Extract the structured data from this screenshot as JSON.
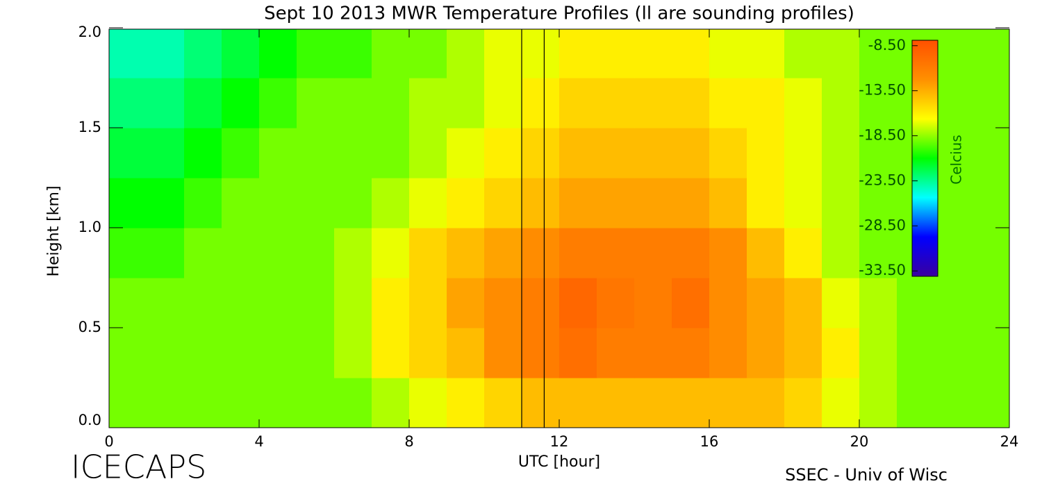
{
  "chart_data": {
    "type": "heatmap",
    "title": "Sept 10 2013 MWR Temperature Profiles (ll are sounding profiles)",
    "x_label": "UTC [hour]",
    "y_label": "Height [km]",
    "colorbar_label": "Celcius",
    "footer_left": "ICECAPS",
    "footer_right": "SSEC - Univ of Wisc",
    "x": [
      0.5,
      1.5,
      2.5,
      3.5,
      4.5,
      5.5,
      6.5,
      7.5,
      8.5,
      9.5,
      10.5,
      11.5,
      12.5,
      13.5,
      14.5,
      15.5,
      16.5,
      17.5,
      18.5,
      19.5,
      20.5,
      21.5,
      22.5,
      23.5
    ],
    "y": [
      0.125,
      0.375,
      0.625,
      0.875,
      1.125,
      1.375,
      1.625,
      1.875
    ],
    "z": [
      [
        -19,
        -19,
        -19,
        -19,
        -19,
        -19,
        -19,
        -18,
        -17,
        -16,
        -15,
        -14,
        -14,
        -14,
        -14,
        -14,
        -14,
        -14,
        -15,
        -17,
        -18,
        -19,
        -19,
        -19
      ],
      [
        -19,
        -19,
        -19,
        -19,
        -19,
        -19,
        -18,
        -16,
        -15,
        -14,
        -12,
        -11,
        -10,
        -11,
        -11,
        -11,
        -12,
        -13,
        -14,
        -16,
        -18,
        -19,
        -19,
        -19
      ],
      [
        -19,
        -19,
        -19,
        -19,
        -19,
        -19,
        -18,
        -16,
        -15,
        -13,
        -12,
        -11,
        -9.5,
        -10.5,
        -11,
        -10,
        -12,
        -13,
        -14,
        -17,
        -18,
        -19,
        -19,
        -19
      ],
      [
        -20,
        -20,
        -19,
        -19,
        -19,
        -19,
        -18,
        -17,
        -15,
        -14,
        -13,
        -12,
        -11,
        -11,
        -11,
        -11,
        -12,
        -14,
        -16,
        -18,
        -19,
        -19,
        -19,
        -19
      ],
      [
        -21,
        -21,
        -20,
        -19,
        -19,
        -19,
        -19,
        -18,
        -17,
        -16,
        -15,
        -14,
        -13,
        -13,
        -13,
        -13,
        -14,
        -16,
        -17,
        -18,
        -19,
        -19,
        -19,
        -19
      ],
      [
        -22,
        -22,
        -21,
        -20,
        -19,
        -19,
        -19,
        -19,
        -18,
        -17,
        -16,
        -15,
        -14,
        -14,
        -14,
        -14,
        -15,
        -16,
        -17,
        -18,
        -19,
        -19,
        -19,
        -19
      ],
      [
        -23,
        -23,
        -22,
        -21,
        -20,
        -19,
        -19,
        -19,
        -18,
        -18,
        -17,
        -16,
        -15,
        -15,
        -15,
        -15,
        -16,
        -16,
        -17,
        -18,
        -19,
        -19,
        -19,
        -19
      ],
      [
        -24,
        -24,
        -23,
        -22,
        -21,
        -20,
        -20,
        -19,
        -19,
        -18,
        -17,
        -17,
        -16,
        -16,
        -16,
        -16,
        -17,
        -17,
        -18,
        -18,
        -19,
        -19,
        -19,
        -19
      ]
    ],
    "sounding_times": [
      11.0,
      11.6
    ],
    "xlim": [
      0,
      24
    ],
    "xticks": [
      0,
      4,
      8,
      12,
      16,
      20,
      24
    ],
    "ylim": [
      0,
      2
    ],
    "yticks": [
      {
        "value": 0,
        "label": "0.0"
      },
      {
        "value": 0.5,
        "label": "0.5"
      },
      {
        "value": 1,
        "label": "1.0"
      },
      {
        "value": 1.5,
        "label": "1.5"
      },
      {
        "value": 2,
        "label": "2.0"
      }
    ],
    "clim": [
      -34.1,
      -7.9
    ],
    "cticks": [
      {
        "value": -8.5,
        "label": "-8.50"
      },
      {
        "value": -13.5,
        "label": "-13.50"
      },
      {
        "value": -18.5,
        "label": "-18.50"
      },
      {
        "value": -23.5,
        "label": "-23.50"
      },
      {
        "value": -28.5,
        "label": "-28.50"
      },
      {
        "value": -33.5,
        "label": "-33.50"
      }
    ],
    "colorscale": [
      "#3a00a0",
      "#0000ff",
      "#00ffff",
      "#00ff00",
      "#ffff00",
      "#ff9000",
      "#ff5000"
    ]
  }
}
